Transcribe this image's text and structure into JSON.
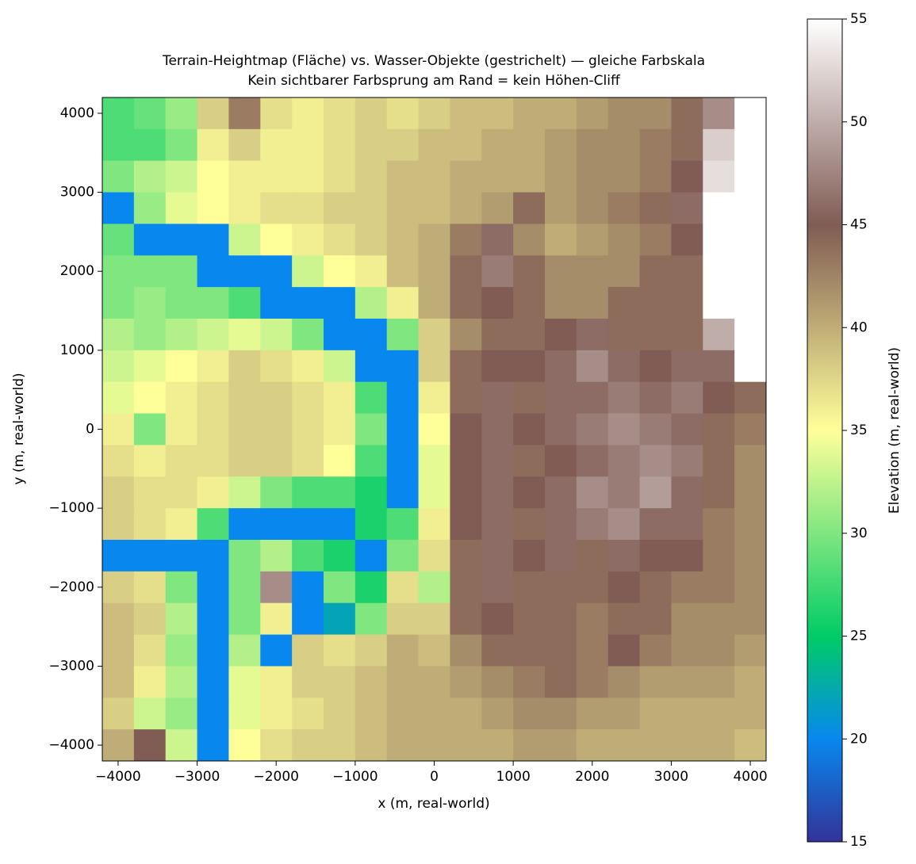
{
  "chart_data": {
    "type": "heatmap",
    "title": "Terrain-Heightmap (Fläche) vs. Wasser-Objekte (gestrichelt) — gleiche Farbskala",
    "subtitle": "Kein sichtbarer Farbsprung am Rand = kein Höhen-Cliff",
    "x_label": "x (m, real-world)",
    "y_label": "y (m, real-world)",
    "xlim": [
      -4200,
      4200
    ],
    "ylim": [
      -4200,
      4200
    ],
    "xticks": [
      {
        "value": -4000,
        "label": "−4000"
      },
      {
        "value": -3000,
        "label": "−3000"
      },
      {
        "value": -2000,
        "label": "−2000"
      },
      {
        "value": -1000,
        "label": "−1000"
      },
      0,
      1000,
      2000,
      3000,
      4000
    ],
    "yticks": [
      {
        "value": -4000,
        "label": "−4000"
      },
      {
        "value": -3000,
        "label": "−3000"
      },
      {
        "value": -2000,
        "label": "−2000"
      },
      {
        "value": -1000,
        "label": "−1000"
      },
      0,
      1000,
      2000,
      3000,
      4000
    ],
    "x": [
      -4000,
      -3600,
      -3200,
      -2800,
      -2400,
      -2000,
      -1600,
      -1200,
      -800,
      -400,
      0,
      400,
      800,
      1200,
      1600,
      2000,
      2400,
      2800,
      3200,
      3600,
      4000
    ],
    "y": [
      4000,
      3600,
      3200,
      2800,
      2400,
      2000,
      1600,
      1200,
      800,
      400,
      0,
      -400,
      -800,
      -1200,
      -1600,
      -2000,
      -2400,
      -2800,
      -3200,
      -3600,
      -4000
    ],
    "z": [
      [
        28,
        29,
        31,
        38,
        43,
        37,
        36,
        37,
        38,
        37,
        38,
        39,
        39,
        40,
        40,
        41,
        42,
        42,
        44,
        48,
        55
      ],
      [
        28,
        28,
        30,
        36,
        38,
        36,
        36,
        37,
        38,
        38,
        39,
        39,
        40,
        40,
        41,
        42,
        42,
        43,
        44,
        52,
        55
      ],
      [
        30,
        32,
        33,
        35,
        36,
        36,
        36,
        37,
        38,
        39,
        39,
        40,
        40,
        40,
        41,
        42,
        42,
        43,
        45,
        53,
        55
      ],
      [
        20,
        31,
        34,
        35,
        36,
        37,
        37,
        38,
        38,
        39,
        39,
        40,
        41,
        44,
        41,
        42,
        43,
        44,
        46,
        55,
        55
      ],
      [
        29,
        20,
        20,
        20,
        33,
        35,
        36,
        37,
        38,
        39,
        40,
        43,
        46,
        42,
        40,
        41,
        42,
        43,
        45,
        55,
        55
      ],
      [
        30,
        30,
        30,
        20,
        20,
        20,
        33,
        35,
        36,
        39,
        40,
        44,
        47,
        44,
        42,
        42,
        42,
        44,
        44,
        55,
        55
      ],
      [
        30,
        31,
        30,
        30,
        28,
        20,
        20,
        20,
        32,
        36,
        40,
        44,
        45,
        44,
        42,
        42,
        44,
        44,
        44,
        55,
        55
      ],
      [
        32,
        31,
        32,
        33,
        34,
        33,
        30,
        20,
        20,
        30,
        38,
        42,
        44,
        44,
        45,
        46,
        44,
        44,
        44,
        50,
        55
      ],
      [
        33,
        34,
        35,
        36,
        38,
        37,
        36,
        33,
        20,
        20,
        38,
        44,
        45,
        45,
        46,
        48,
        46,
        45,
        46,
        46,
        55
      ],
      [
        34,
        35,
        36,
        37,
        38,
        38,
        37,
        36,
        28,
        20,
        36,
        44,
        46,
        44,
        46,
        46,
        47,
        46,
        47,
        45,
        44
      ],
      [
        36,
        30,
        36,
        37,
        38,
        38,
        37,
        36,
        30,
        20,
        35,
        45,
        46,
        45,
        46,
        47,
        48,
        47,
        46,
        44,
        43
      ],
      [
        37,
        36,
        37,
        37,
        38,
        38,
        37,
        35,
        28,
        20,
        34,
        45,
        46,
        44,
        45,
        46,
        47,
        48,
        47,
        44,
        42
      ],
      [
        38,
        37,
        37,
        36,
        33,
        30,
        28,
        28,
        26,
        20,
        34,
        45,
        46,
        45,
        46,
        48,
        47,
        49,
        46,
        44,
        42
      ],
      [
        38,
        37,
        36,
        28,
        20,
        20,
        20,
        20,
        26,
        28,
        36,
        45,
        46,
        44,
        46,
        47,
        48,
        46,
        46,
        43,
        42
      ],
      [
        20,
        20,
        20,
        20,
        30,
        32,
        28,
        26,
        20,
        30,
        37,
        44,
        46,
        45,
        46,
        44,
        46,
        45,
        45,
        43,
        42
      ],
      [
        38,
        37,
        30,
        20,
        30,
        48,
        20,
        30,
        26,
        37,
        32,
        44,
        46,
        44,
        44,
        44,
        45,
        44,
        43,
        43,
        42
      ],
      [
        39,
        38,
        32,
        20,
        30,
        36,
        20,
        22,
        30,
        38,
        38,
        44,
        45,
        44,
        44,
        43,
        44,
        44,
        42,
        42,
        42
      ],
      [
        39,
        37,
        31,
        20,
        32,
        20,
        38,
        37,
        38,
        40,
        39,
        42,
        44,
        44,
        44,
        43,
        45,
        43,
        42,
        42,
        41
      ],
      [
        39,
        36,
        32,
        20,
        34,
        36,
        38,
        38,
        39,
        40,
        40,
        41,
        42,
        43,
        44,
        43,
        42,
        41,
        41,
        41,
        40
      ],
      [
        38,
        33,
        31,
        20,
        34,
        36,
        37,
        38,
        39,
        40,
        40,
        40,
        41,
        42,
        42,
        41,
        41,
        40,
        40,
        40,
        40
      ],
      [
        40,
        45,
        33,
        20,
        35,
        37,
        38,
        38,
        39,
        40,
        40,
        40,
        40,
        41,
        41,
        40,
        40,
        40,
        40,
        40,
        39
      ]
    ],
    "cell_size": 400,
    "colorbar": {
      "label": "Elevation (m, real-world)",
      "lim": [
        15,
        55
      ],
      "ticks": [
        15,
        20,
        25,
        30,
        35,
        40,
        45,
        50,
        55
      ],
      "colors": [
        "#333399",
        "#0888ee",
        "#00cc66",
        "#80e680",
        "#ffff99",
        "#bfad77",
        "#805c54",
        "#bfadaa",
        "#ffffff"
      ]
    }
  }
}
